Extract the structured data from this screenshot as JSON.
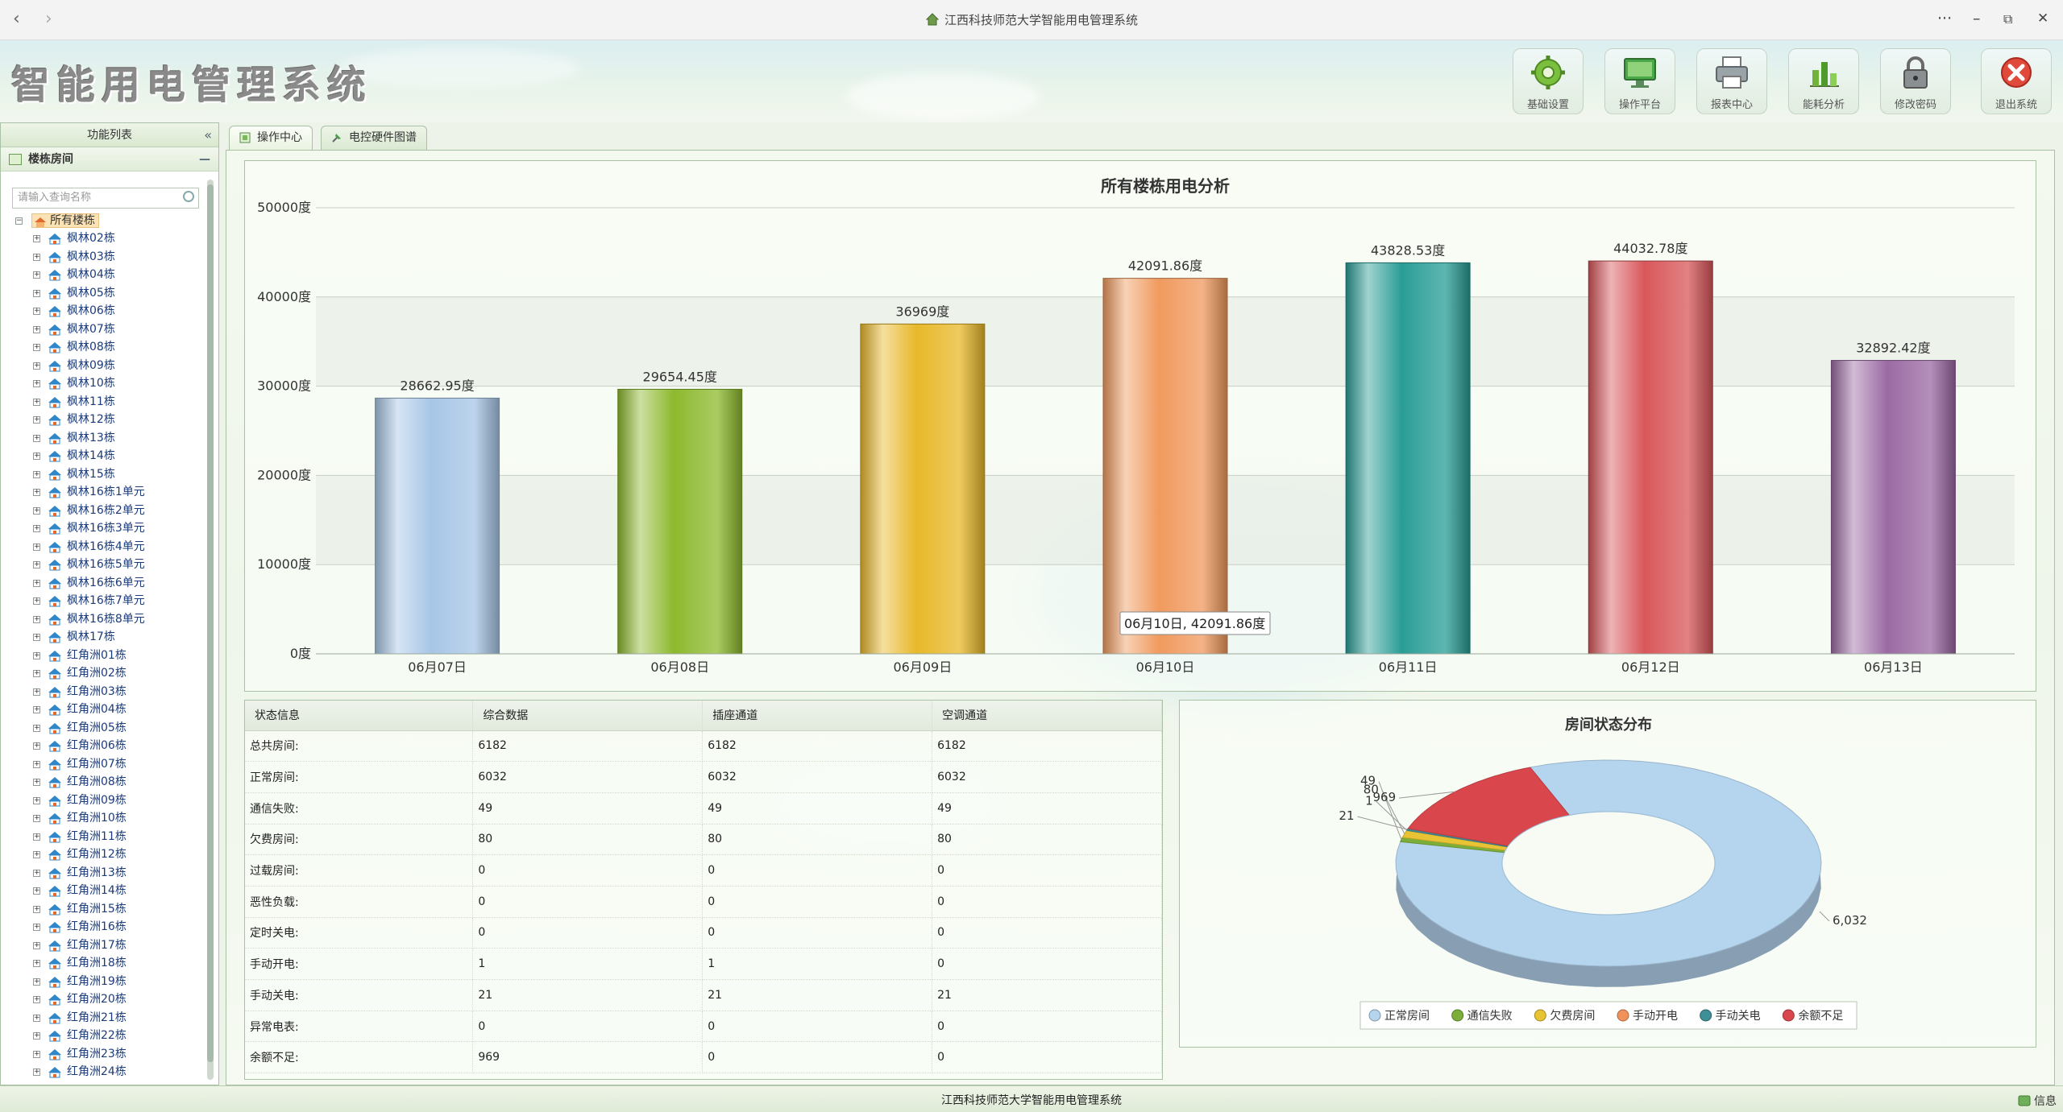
{
  "window": {
    "title": "江西科技师范大学智能用电管理系统",
    "back": "‹",
    "forward": "›",
    "more": "···",
    "minimize": "–",
    "restore": "⧉",
    "close": "✕"
  },
  "header": {
    "brand": "智能用电管理系统",
    "buttons": [
      {
        "label": "基础设置",
        "icon": "gear-icon"
      },
      {
        "label": "操作平台",
        "icon": "monitor-icon"
      },
      {
        "label": "报表中心",
        "icon": "printer-icon"
      },
      {
        "label": "能耗分析",
        "icon": "bar-chart-icon"
      },
      {
        "label": "修改密码",
        "icon": "lock-icon"
      },
      {
        "label": "退出系统",
        "icon": "close-icon"
      }
    ]
  },
  "sidebar": {
    "title": "功能列表",
    "collapse": "«",
    "section": "楼栋房间",
    "section_toggle": "—",
    "search_placeholder": "请输入查询名称",
    "root": "所有楼栋",
    "items": [
      "枫林02栋",
      "枫林03栋",
      "枫林04栋",
      "枫林05栋",
      "枫林06栋",
      "枫林07栋",
      "枫林08栋",
      "枫林09栋",
      "枫林10栋",
      "枫林11栋",
      "枫林12栋",
      "枫林13栋",
      "枫林14栋",
      "枫林15栋",
      "枫林16栋1单元",
      "枫林16栋2单元",
      "枫林16栋3单元",
      "枫林16栋4单元",
      "枫林16栋5单元",
      "枫林16栋6单元",
      "枫林16栋7单元",
      "枫林16栋8单元",
      "枫林17栋",
      "红角洲01栋",
      "红角洲02栋",
      "红角洲03栋",
      "红角洲04栋",
      "红角洲05栋",
      "红角洲06栋",
      "红角洲07栋",
      "红角洲08栋",
      "红角洲09栋",
      "红角洲10栋",
      "红角洲11栋",
      "红角洲12栋",
      "红角洲13栋",
      "红角洲14栋",
      "红角洲15栋",
      "红角洲16栋",
      "红角洲17栋",
      "红角洲18栋",
      "红角洲19栋",
      "红角洲20栋",
      "红角洲21栋",
      "红角洲22栋",
      "红角洲23栋",
      "红角洲24栋"
    ]
  },
  "tabs": [
    {
      "label": "操作中心"
    },
    {
      "label": "电控硬件图谱"
    }
  ],
  "chart_data": [
    {
      "type": "bar",
      "title": "所有楼栋用电分析",
      "categories": [
        "06月07日",
        "06月08日",
        "06月09日",
        "06月10日",
        "06月11日",
        "06月12日",
        "06月13日"
      ],
      "values": [
        28662.95,
        29654.45,
        36969,
        42091.86,
        43828.53,
        44032.78,
        32892.42
      ],
      "data_labels": [
        "28662.95度",
        "29654.45度",
        "36969度",
        "42091.86度",
        "43828.53度",
        "44032.78度",
        "32892.42度"
      ],
      "ylim": [
        0,
        50000
      ],
      "yticks": [
        "0度",
        "10000度",
        "20000度",
        "30000度",
        "40000度",
        "50000度"
      ],
      "colors": [
        "#a7c6e6",
        "#8db92e",
        "#e8b82a",
        "#f09a5e",
        "#2a9d96",
        "#d8575a",
        "#9b6aa3"
      ],
      "tooltip": "06月10日, 42091.86度"
    },
    {
      "type": "pie",
      "title": "房间状态分布",
      "labels": [
        "正常房间",
        "通信失败",
        "欠费房间",
        "手动开电",
        "手动关电",
        "余额不足"
      ],
      "values": [
        6032,
        49,
        80,
        1,
        21,
        969
      ],
      "value_labels": [
        "6,032",
        "49",
        "80",
        "1",
        "21",
        "969"
      ],
      "colors": [
        "#b5d4ee",
        "#7cae3a",
        "#e8c334",
        "#f0935a",
        "#3f8f96",
        "#d9474d"
      ]
    }
  ],
  "status_table": {
    "headers": [
      "状态信息",
      "综合数据",
      "插座通道",
      "空调通道"
    ],
    "rows": [
      [
        "总共房间:",
        "6182",
        "6182",
        "6182"
      ],
      [
        "正常房间:",
        "6032",
        "6032",
        "6032"
      ],
      [
        "通信失败:",
        "49",
        "49",
        "49"
      ],
      [
        "欠费房间:",
        "80",
        "80",
        "80"
      ],
      [
        "过载房间:",
        "0",
        "0",
        "0"
      ],
      [
        "恶性负载:",
        "0",
        "0",
        "0"
      ],
      [
        "定时关电:",
        "0",
        "0",
        "0"
      ],
      [
        "手动开电:",
        "1",
        "1",
        "0"
      ],
      [
        "手动关电:",
        "21",
        "21",
        "21"
      ],
      [
        "异常电表:",
        "0",
        "0",
        "0"
      ],
      [
        "余额不足:",
        "969",
        "0",
        "0"
      ]
    ]
  },
  "statusbar": {
    "text": "江西科技师范大学智能用电管理系统",
    "info": "信息"
  }
}
